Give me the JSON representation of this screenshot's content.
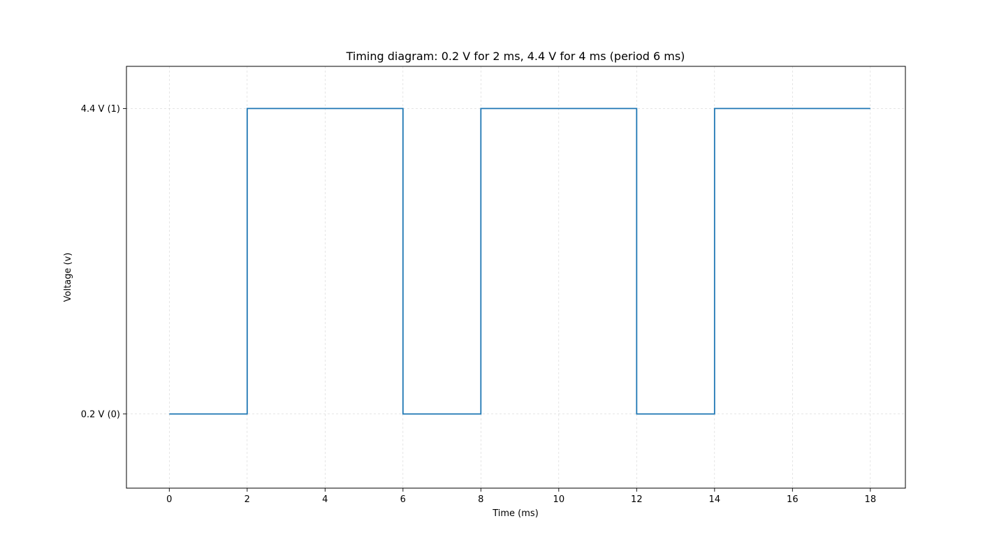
{
  "chart_data": {
    "type": "line",
    "title": "Timing diagram: 0.2 V for 2 ms, 4.4 V for 4 ms (period 6 ms)",
    "xlabel": "Time (ms)",
    "ylabel": "Voltage (v)",
    "xlim": [
      -1.1,
      18.9
    ],
    "ylim": [
      -0.82,
      4.98
    ],
    "x_ticks": [
      0,
      2,
      4,
      6,
      8,
      10,
      12,
      14,
      16,
      18
    ],
    "x_tick_labels": [
      "0",
      "2",
      "4",
      "6",
      "8",
      "10",
      "12",
      "14",
      "16",
      "18"
    ],
    "y_ticks": [
      0.2,
      4.4
    ],
    "y_tick_labels": [
      "0.2 V (0)",
      "4.4 V (1)"
    ],
    "grid": true,
    "legend": "none",
    "series": [
      {
        "color": "#1f77b4",
        "step": true,
        "x": [
          0,
          2,
          2,
          6,
          6,
          8,
          8,
          12,
          12,
          14,
          14,
          18
        ],
        "y": [
          0.2,
          0.2,
          4.4,
          4.4,
          0.2,
          0.2,
          4.4,
          4.4,
          0.2,
          0.2,
          4.4,
          4.4
        ]
      }
    ]
  }
}
